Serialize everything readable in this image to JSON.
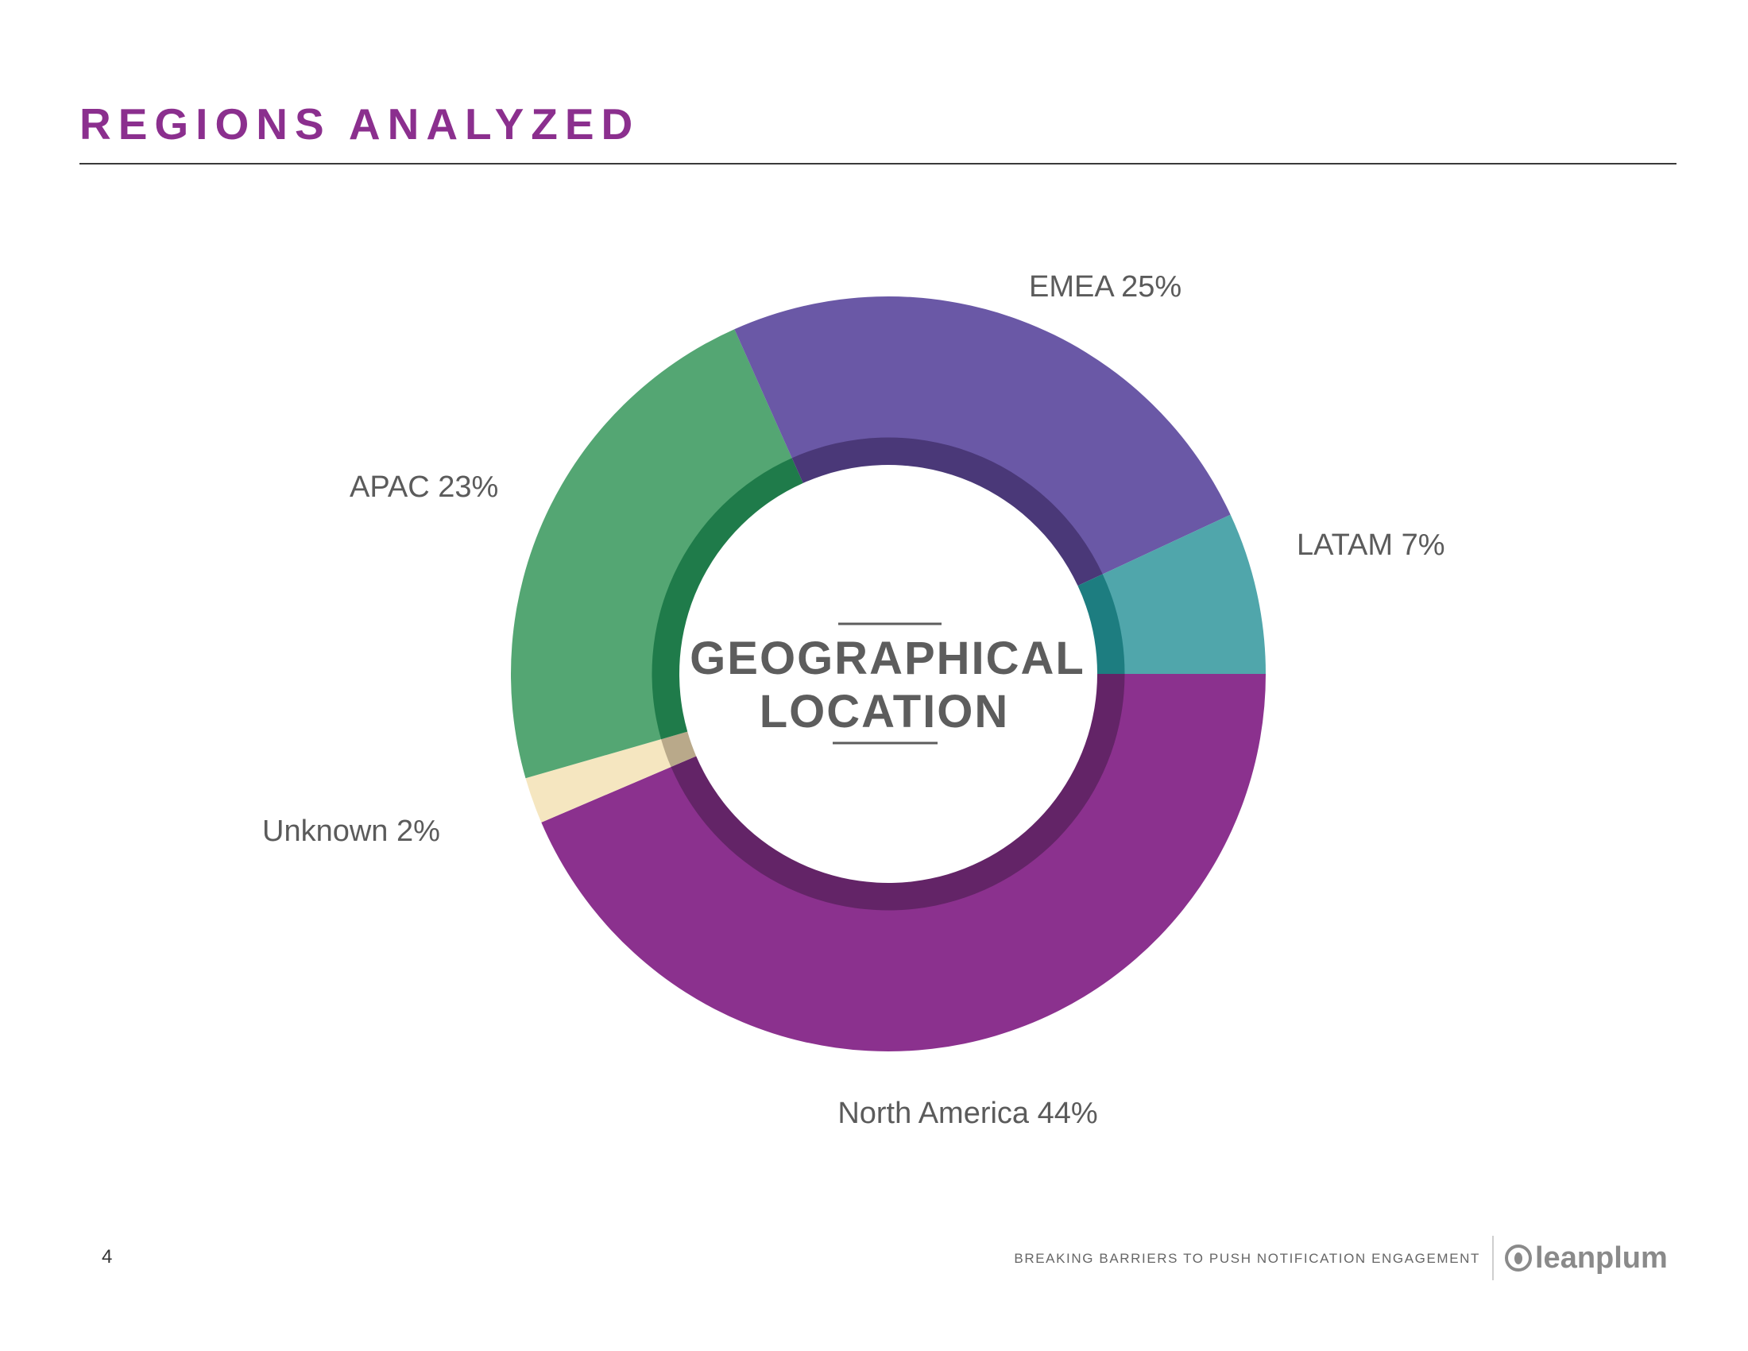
{
  "header": {
    "title": "REGIONS ANALYZED"
  },
  "chart_data": {
    "type": "pie",
    "variant": "donut",
    "center_label": [
      "GEOGRAPHICAL",
      "LOCATION"
    ],
    "slices": [
      {
        "name": "North America",
        "value": 44,
        "label": "North America 44%",
        "color": "#8b318e",
        "inner_color": "#632467"
      },
      {
        "name": "Unknown",
        "value": 2,
        "label": "Unknown 2%",
        "color": "#f5e6c0",
        "inner_color": "#b9a98a"
      },
      {
        "name": "APAC",
        "value": 23,
        "label": "APAC 23%",
        "color": "#54a673",
        "inner_color": "#1f7b4a"
      },
      {
        "name": "EMEA",
        "value": 25,
        "label": "EMEA 25%",
        "color": "#6a58a6",
        "inner_color": "#4a3878"
      },
      {
        "name": "LATAM",
        "value": 7,
        "label": "LATAM 7%",
        "color": "#50a6ab",
        "inner_color": "#1d7d80"
      }
    ]
  },
  "footer": {
    "page_number": "4",
    "tagline": "BREAKING BARRIERS TO PUSH NOTIFICATION ENGAGEMENT",
    "brand": "leanplum"
  }
}
